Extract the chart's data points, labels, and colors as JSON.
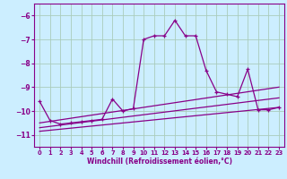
{
  "xlabel": "Windchill (Refroidissement éolien,°C)",
  "background_color": "#cceeff",
  "grid_color": "#aaccbb",
  "line_color": "#880088",
  "xlim": [
    -0.5,
    23.5
  ],
  "ylim": [
    -11.5,
    -5.5
  ],
  "yticks": [
    -11,
    -10,
    -9,
    -8,
    -7,
    -6
  ],
  "xticks": [
    0,
    1,
    2,
    3,
    4,
    5,
    6,
    7,
    8,
    9,
    10,
    11,
    12,
    13,
    14,
    15,
    16,
    17,
    18,
    19,
    20,
    21,
    22,
    23
  ],
  "series": [
    {
      "x": [
        0,
        1,
        2,
        3,
        4,
        5,
        6,
        7,
        8,
        9,
        10,
        11,
        12,
        13,
        14,
        15,
        16,
        17,
        18,
        19,
        20,
        21,
        22,
        23
      ],
      "y": [
        -9.6,
        -10.4,
        -10.55,
        -10.5,
        -10.45,
        -10.4,
        -10.35,
        -9.5,
        -10.0,
        -9.9,
        -7.0,
        -6.85,
        -6.85,
        -6.2,
        -6.85,
        -6.85,
        -8.3,
        -9.2,
        -9.3,
        -9.4,
        -8.25,
        -9.95,
        -9.95,
        -9.85
      ]
    },
    {
      "x": [
        0,
        23
      ],
      "y": [
        -10.5,
        -9.0
      ]
    },
    {
      "x": [
        0,
        23
      ],
      "y": [
        -10.85,
        -9.85
      ]
    },
    {
      "x": [
        0,
        23
      ],
      "y": [
        -10.7,
        -9.45
      ]
    }
  ]
}
